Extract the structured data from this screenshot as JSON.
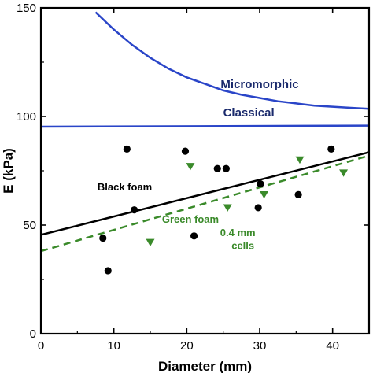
{
  "chart_data": {
    "type": "scatter",
    "xlabel": "Diameter (mm)",
    "ylabel": "E (kPa)",
    "xlim": [
      0,
      45
    ],
    "ylim": [
      0,
      150
    ],
    "xticks": [
      0,
      10,
      20,
      30,
      40
    ],
    "yticks": [
      0,
      50,
      100,
      150
    ],
    "grid": false,
    "series": [
      {
        "kind": "points",
        "marker": "circle",
        "color": "#000000",
        "points": [
          [
            8.5,
            44
          ],
          [
            9.2,
            29
          ],
          [
            11.8,
            85
          ],
          [
            12.8,
            57
          ],
          [
            19.8,
            84
          ],
          [
            21,
            45
          ],
          [
            24.2,
            76
          ],
          [
            25.4,
            76
          ],
          [
            29.8,
            58
          ],
          [
            30.1,
            69
          ],
          [
            35.3,
            64
          ],
          [
            39.8,
            85
          ]
        ]
      },
      {
        "kind": "points",
        "marker": "triangle-down",
        "color": "#3a8a2a",
        "points": [
          [
            15,
            42
          ],
          [
            20.5,
            77
          ],
          [
            25.6,
            58
          ],
          [
            30.6,
            64
          ],
          [
            35.5,
            80
          ],
          [
            41.5,
            74
          ]
        ]
      },
      {
        "kind": "line",
        "name": "Black foam",
        "color": "#000000",
        "style": "solid",
        "points": [
          [
            0,
            45.5
          ],
          [
            45,
            83.5
          ]
        ]
      },
      {
        "kind": "line",
        "name": "Green foam",
        "color": "#3a8a2a",
        "style": "dashed",
        "points": [
          [
            0,
            38
          ],
          [
            45,
            82
          ]
        ]
      },
      {
        "kind": "line",
        "name": "Classical",
        "color": "#2a45c8",
        "style": "solid",
        "points": [
          [
            0,
            95.3
          ],
          [
            45,
            95.8
          ]
        ]
      },
      {
        "kind": "line",
        "name": "Micromorphic",
        "color": "#2a45c8",
        "style": "solid",
        "points": [
          [
            7.5,
            148
          ],
          [
            10,
            140
          ],
          [
            12.5,
            133
          ],
          [
            15,
            127
          ],
          [
            17.5,
            122
          ],
          [
            20,
            118
          ],
          [
            22.5,
            115
          ],
          [
            25,
            112
          ],
          [
            27.5,
            110
          ],
          [
            30,
            108.5
          ],
          [
            32.5,
            107
          ],
          [
            35,
            106
          ],
          [
            37.5,
            105
          ],
          [
            40,
            104.5
          ],
          [
            42.5,
            104
          ],
          [
            45,
            103.5
          ]
        ]
      }
    ],
    "annotations": [
      {
        "text": "Micromorphic",
        "x": 30,
        "y": 113,
        "color": "#1a2a6c"
      },
      {
        "text": "Classical",
        "x": 28.5,
        "y": 100,
        "color": "#1a2a6c"
      },
      {
        "text": "Black foam",
        "x": 11.5,
        "y": 66,
        "color": "#000000"
      },
      {
        "text": "Green foam",
        "x": 20.5,
        "y": 51,
        "color": "#3a8a2a"
      },
      {
        "text": "0.4 mm",
        "x": 27,
        "y": 45,
        "color": "#3a8a2a"
      },
      {
        "text": "cells",
        "x": 27.7,
        "y": 39,
        "color": "#3a8a2a"
      }
    ]
  }
}
